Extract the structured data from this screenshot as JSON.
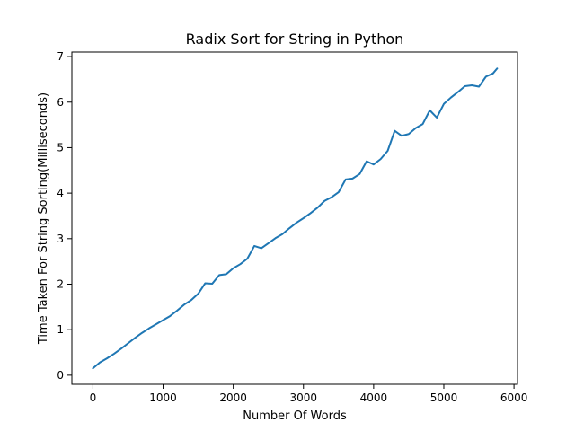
{
  "chart_data": {
    "type": "line",
    "title": "Radix Sort for String in Python",
    "xlabel": "Number Of Words",
    "ylabel": "Time Taken For String Sorting(Milliseconds)",
    "xlim": [
      -300,
      6050
    ],
    "ylim": [
      -0.2,
      7.1
    ],
    "xticks": [
      0,
      1000,
      2000,
      3000,
      4000,
      5000,
      6000
    ],
    "yticks": [
      0,
      1,
      2,
      3,
      4,
      5,
      6,
      7
    ],
    "grid": false,
    "legend": "none",
    "series": [
      {
        "color": "#1f77b4",
        "x": [
          0,
          100,
          200,
          300,
          400,
          500,
          600,
          700,
          800,
          900,
          1000,
          1100,
          1200,
          1300,
          1400,
          1500,
          1600,
          1700,
          1800,
          1900,
          2000,
          2100,
          2200,
          2300,
          2400,
          2500,
          2600,
          2700,
          2800,
          2900,
          3000,
          3100,
          3200,
          3300,
          3400,
          3500,
          3600,
          3700,
          3800,
          3900,
          4000,
          4100,
          4200,
          4300,
          4400,
          4500,
          4600,
          4700,
          4800,
          4900,
          5000,
          5100,
          5200,
          5300,
          5400,
          5500,
          5600,
          5700,
          5760
        ],
        "values": [
          0.15,
          0.28,
          0.37,
          0.47,
          0.58,
          0.7,
          0.82,
          0.93,
          1.03,
          1.12,
          1.21,
          1.3,
          1.42,
          1.55,
          1.65,
          1.79,
          2.02,
          2.01,
          2.2,
          2.22,
          2.35,
          2.44,
          2.56,
          2.84,
          2.79,
          2.9,
          3.01,
          3.1,
          3.23,
          3.35,
          3.45,
          3.56,
          3.68,
          3.83,
          3.91,
          4.02,
          4.3,
          4.32,
          4.42,
          4.7,
          4.63,
          4.75,
          4.93,
          5.37,
          5.26,
          5.3,
          5.43,
          5.52,
          5.82,
          5.66,
          5.96,
          6.1,
          6.22,
          6.35,
          6.37,
          6.34,
          6.56,
          6.63,
          6.74
        ]
      }
    ]
  }
}
